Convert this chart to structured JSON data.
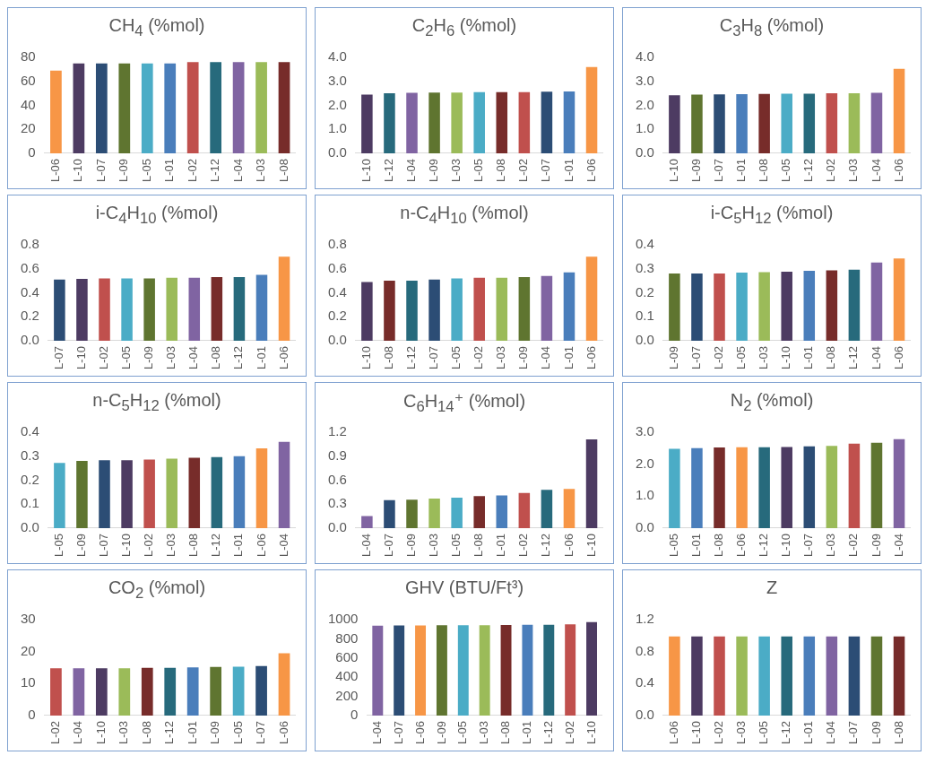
{
  "chart_data": [
    {
      "type": "bar",
      "title": "CH$_{4}$ (%mol)",
      "categories": [
        "L-06",
        "L-10",
        "L-07",
        "L-09",
        "L-05",
        "L-01",
        "L-02",
        "L-12",
        "L-04",
        "L-03",
        "L-08"
      ],
      "colors": [
        "#f79646",
        "#4d3b62",
        "#2c4d75",
        "#5f7530",
        "#4bacc6",
        "#4a7ebb",
        "#c0504d",
        "#276a7c",
        "#8064a2",
        "#9bbb59",
        "#772c2a"
      ],
      "values": [
        69,
        75,
        75,
        75,
        75,
        75,
        76,
        76,
        76,
        76,
        76
      ],
      "ylim": [
        0,
        80
      ],
      "yticks": [
        0,
        20,
        40,
        60,
        80
      ]
    },
    {
      "type": "bar",
      "title": "C$_{2}$H$_{6}$ (%mol)",
      "categories": [
        "L-10",
        "L-12",
        "L-04",
        "L-09",
        "L-03",
        "L-05",
        "L-08",
        "L-02",
        "L-07",
        "L-01",
        "L-06"
      ],
      "colors": [
        "#4d3b62",
        "#276a7c",
        "#8064a2",
        "#5f7530",
        "#9bbb59",
        "#4bacc6",
        "#772c2a",
        "#c0504d",
        "#2c4d75",
        "#4a7ebb",
        "#f79646"
      ],
      "values": [
        2.45,
        2.5,
        2.52,
        2.53,
        2.53,
        2.55,
        2.55,
        2.55,
        2.57,
        2.58,
        3.6
      ],
      "ylim": [
        0,
        4
      ],
      "yticks": [
        {
          "value": 0,
          "label": "0.0"
        },
        {
          "value": 1,
          "label": "1.0"
        },
        {
          "value": 2,
          "label": "2.0"
        },
        {
          "value": 3,
          "label": "3.0"
        },
        {
          "value": 4,
          "label": "4.0"
        }
      ]
    },
    {
      "type": "bar",
      "title": "C$_{3}$H$_{8}$ (%mol)",
      "categories": [
        "L-10",
        "L-09",
        "L-07",
        "L-01",
        "L-08",
        "L-05",
        "L-12",
        "L-02",
        "L-03",
        "L-04",
        "L-06"
      ],
      "colors": [
        "#4d3b62",
        "#5f7530",
        "#2c4d75",
        "#4a7ebb",
        "#772c2a",
        "#4bacc6",
        "#276a7c",
        "#c0504d",
        "#9bbb59",
        "#8064a2",
        "#f79646"
      ],
      "values": [
        2.42,
        2.45,
        2.46,
        2.47,
        2.48,
        2.49,
        2.49,
        2.5,
        2.5,
        2.52,
        3.52
      ],
      "ylim": [
        0,
        4
      ],
      "yticks": [
        {
          "value": 0,
          "label": "0.0"
        },
        {
          "value": 1,
          "label": "1.0"
        },
        {
          "value": 2,
          "label": "2.0"
        },
        {
          "value": 3,
          "label": "3.0"
        },
        {
          "value": 4,
          "label": "4.0"
        }
      ]
    },
    {
      "type": "bar",
      "title": "i-C$_{4}$H$_{10}$ (%mol)",
      "categories": [
        "L-07",
        "L-10",
        "L-02",
        "L-05",
        "L-09",
        "L-03",
        "L-04",
        "L-08",
        "L-12",
        "L-01",
        "L-06"
      ],
      "colors": [
        "#2c4d75",
        "#4d3b62",
        "#c0504d",
        "#4bacc6",
        "#5f7530",
        "#9bbb59",
        "#8064a2",
        "#772c2a",
        "#276a7c",
        "#4a7ebb",
        "#f79646"
      ],
      "values": [
        0.51,
        0.515,
        0.52,
        0.52,
        0.52,
        0.525,
        0.525,
        0.53,
        0.53,
        0.55,
        0.7
      ],
      "ylim": [
        0,
        0.8
      ],
      "yticks": [
        {
          "value": 0,
          "label": "0.0"
        },
        0.2,
        0.4,
        0.6,
        0.8
      ]
    },
    {
      "type": "bar",
      "title": "n-C$_{4}$H$_{10}$ (%mol)",
      "categories": [
        "L-10",
        "L-08",
        "L-12",
        "L-07",
        "L-05",
        "L-02",
        "L-03",
        "L-09",
        "L-04",
        "L-01",
        "L-06"
      ],
      "colors": [
        "#4d3b62",
        "#772c2a",
        "#276a7c",
        "#2c4d75",
        "#4bacc6",
        "#c0504d",
        "#9bbb59",
        "#5f7530",
        "#8064a2",
        "#4a7ebb",
        "#f79646"
      ],
      "values": [
        0.49,
        0.5,
        0.5,
        0.51,
        0.52,
        0.525,
        0.525,
        0.53,
        0.54,
        0.57,
        0.7
      ],
      "ylim": [
        0,
        0.8
      ],
      "yticks": [
        {
          "value": 0,
          "label": "0.0"
        },
        0.2,
        0.4,
        0.6,
        0.8
      ]
    },
    {
      "type": "bar",
      "title": "i-C$_{5}$H$_{12}$ (%mol)",
      "categories": [
        "L-09",
        "L-07",
        "L-02",
        "L-05",
        "L-03",
        "L-10",
        "L-01",
        "L-08",
        "L-12",
        "L-04",
        "L-06"
      ],
      "colors": [
        "#5f7530",
        "#2c4d75",
        "#c0504d",
        "#4bacc6",
        "#9bbb59",
        "#4d3b62",
        "#4a7ebb",
        "#772c2a",
        "#276a7c",
        "#8064a2",
        "#f79646"
      ],
      "values": [
        0.28,
        0.28,
        0.28,
        0.284,
        0.286,
        0.288,
        0.292,
        0.293,
        0.296,
        0.326,
        0.343
      ],
      "ylim": [
        0,
        0.4
      ],
      "yticks": [
        {
          "value": 0,
          "label": "0.0"
        },
        0.1,
        0.2,
        0.3,
        0.4
      ]
    },
    {
      "type": "bar",
      "title": "n-C$_{5}$H$_{12}$ (%mol)",
      "categories": [
        "L-05",
        "L-09",
        "L-07",
        "L-10",
        "L-02",
        "L-03",
        "L-08",
        "L-12",
        "L-01",
        "L-06",
        "L-04"
      ],
      "colors": [
        "#4bacc6",
        "#5f7530",
        "#2c4d75",
        "#4d3b62",
        "#c0504d",
        "#9bbb59",
        "#772c2a",
        "#276a7c",
        "#4a7ebb",
        "#f79646",
        "#8064a2"
      ],
      "values": [
        0.272,
        0.28,
        0.283,
        0.283,
        0.286,
        0.29,
        0.293,
        0.296,
        0.3,
        0.333,
        0.36
      ],
      "ylim": [
        0,
        0.4
      ],
      "yticks": [
        {
          "value": 0,
          "label": "0.0"
        },
        0.1,
        0.2,
        0.3,
        0.4
      ]
    },
    {
      "type": "bar",
      "title": "C$_{6}$H$_{14}$⁺ (%mol)",
      "categories": [
        "L-04",
        "L-07",
        "L-09",
        "L-03",
        "L-05",
        "L-08",
        "L-01",
        "L-02",
        "L-12",
        "L-06",
        "L-10"
      ],
      "colors": [
        "#8064a2",
        "#2c4d75",
        "#5f7530",
        "#9bbb59",
        "#4bacc6",
        "#772c2a",
        "#4a7ebb",
        "#c0504d",
        "#276a7c",
        "#f79646",
        "#4d3b62"
      ],
      "values": [
        0.15,
        0.35,
        0.355,
        0.37,
        0.38,
        0.4,
        0.41,
        0.44,
        0.48,
        0.49,
        1.11
      ],
      "ylim": [
        0,
        1.2
      ],
      "yticks": [
        {
          "value": 0,
          "label": "0.0"
        },
        0.3,
        0.6,
        0.9,
        1.2
      ]
    },
    {
      "type": "bar",
      "title": "N$_{2}$ (%mol)",
      "categories": [
        "L-05",
        "L-01",
        "L-08",
        "L-06",
        "L-12",
        "L-10",
        "L-07",
        "L-03",
        "L-02",
        "L-09",
        "L-04"
      ],
      "colors": [
        "#4bacc6",
        "#4a7ebb",
        "#772c2a",
        "#f79646",
        "#276a7c",
        "#4d3b62",
        "#2c4d75",
        "#9bbb59",
        "#c0504d",
        "#5f7530",
        "#8064a2"
      ],
      "values": [
        2.48,
        2.5,
        2.52,
        2.53,
        2.53,
        2.54,
        2.56,
        2.57,
        2.64,
        2.67,
        2.78
      ],
      "ylim": [
        0,
        3
      ],
      "yticks": [
        {
          "value": 0,
          "label": "0.0"
        },
        {
          "value": 1,
          "label": "1.0"
        },
        {
          "value": 2,
          "label": "2.0"
        },
        {
          "value": 3,
          "label": "3.0"
        }
      ]
    },
    {
      "type": "bar",
      "title": "CO$_{2}$ (%mol)",
      "categories": [
        "L-02",
        "L-04",
        "L-10",
        "L-03",
        "L-08",
        "L-12",
        "L-01",
        "L-09",
        "L-05",
        "L-07",
        "L-06"
      ],
      "colors": [
        "#c0504d",
        "#8064a2",
        "#4d3b62",
        "#9bbb59",
        "#772c2a",
        "#276a7c",
        "#4a7ebb",
        "#5f7530",
        "#4bacc6",
        "#2c4d75",
        "#f79646"
      ],
      "values": [
        14.8,
        14.8,
        14.8,
        14.8,
        14.9,
        14.9,
        15.1,
        15.2,
        15.3,
        15.5,
        19.5
      ],
      "ylim": [
        0,
        30
      ],
      "yticks": [
        0,
        10,
        20,
        30
      ]
    },
    {
      "type": "bar",
      "title": "GHV (BTU/Ft³)",
      "categories": [
        "L-04",
        "L-07",
        "L-06",
        "L-09",
        "L-05",
        "L-03",
        "L-08",
        "L-01",
        "L-12",
        "L-02",
        "L-10"
      ],
      "colors": [
        "#8064a2",
        "#2c4d75",
        "#f79646",
        "#5f7530",
        "#4bacc6",
        "#9bbb59",
        "#772c2a",
        "#4a7ebb",
        "#276a7c",
        "#c0504d",
        "#4d3b62"
      ],
      "values": [
        937,
        940,
        940,
        942,
        942,
        942,
        945,
        947,
        947,
        952,
        975
      ],
      "ylim": [
        0,
        1000
      ],
      "yticks": [
        0,
        200,
        400,
        600,
        800,
        1000
      ]
    },
    {
      "type": "bar",
      "title": "Z",
      "categories": [
        "L-06",
        "L-10",
        "L-02",
        "L-03",
        "L-05",
        "L-12",
        "L-01",
        "L-04",
        "L-07",
        "L-09",
        "L-08"
      ],
      "colors": [
        "#f79646",
        "#4d3b62",
        "#c0504d",
        "#9bbb59",
        "#4bacc6",
        "#276a7c",
        "#4a7ebb",
        "#8064a2",
        "#2c4d75",
        "#5f7530",
        "#772c2a"
      ],
      "values": [
        0.99,
        0.99,
        0.99,
        0.99,
        0.99,
        0.99,
        0.99,
        0.99,
        0.99,
        0.99,
        0.99
      ],
      "ylim": [
        0,
        1.2
      ],
      "yticks": [
        {
          "value": 0,
          "label": "0.0"
        },
        0.4,
        0.8,
        1.2
      ]
    }
  ]
}
